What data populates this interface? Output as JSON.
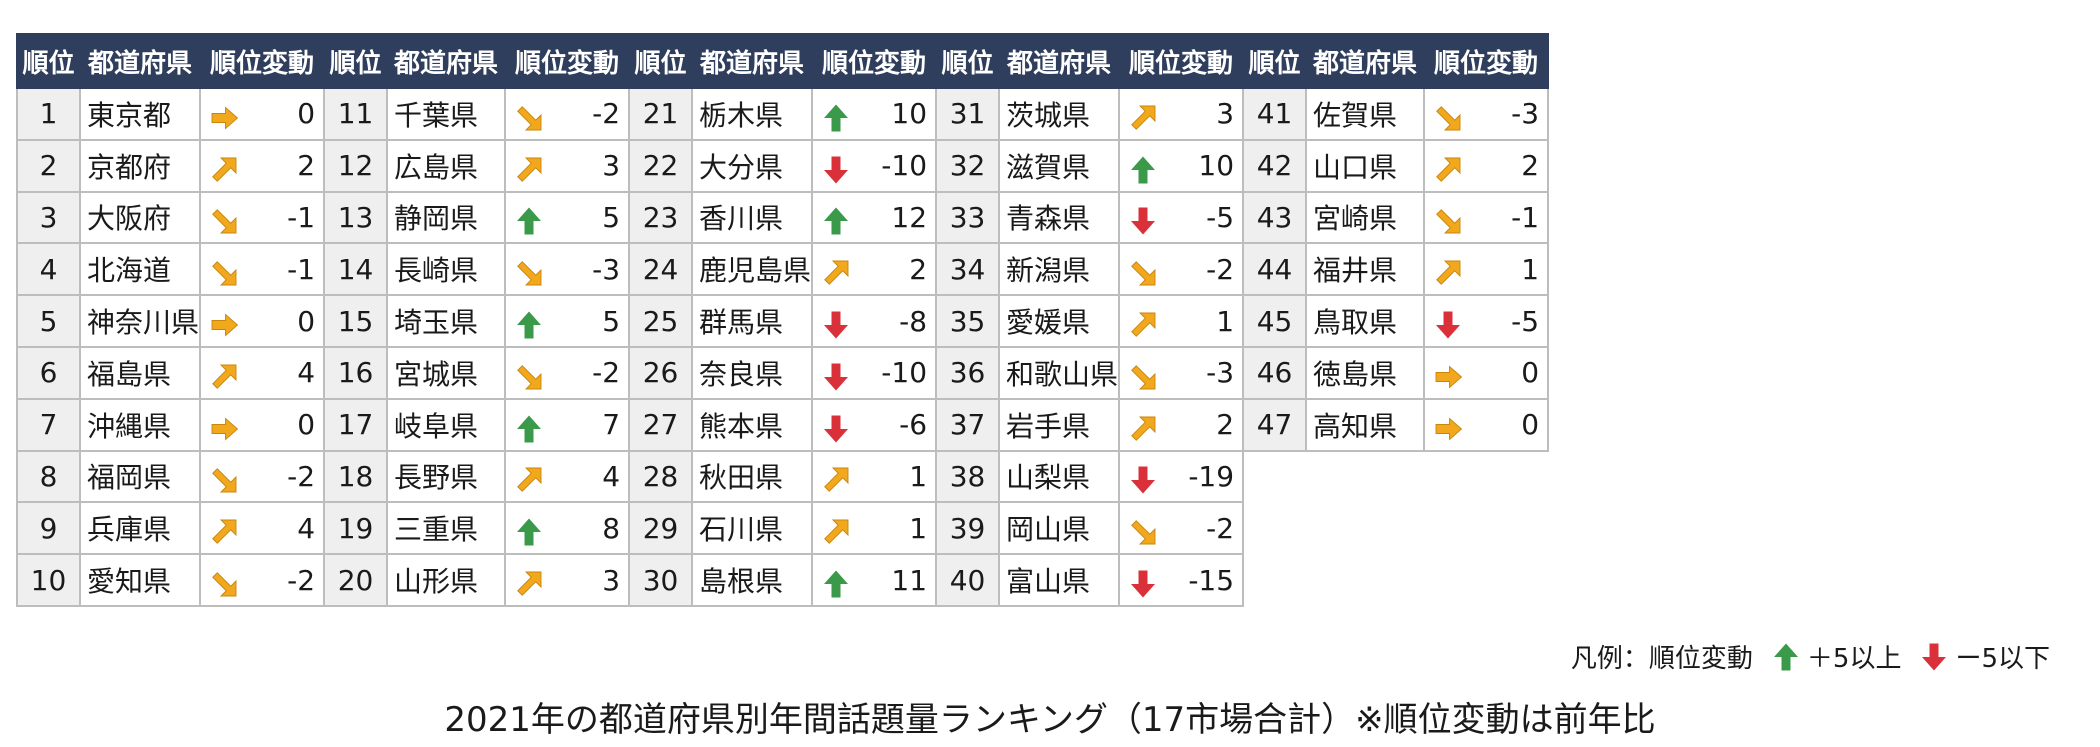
{
  "table": {
    "headers": {
      "rank": "順位",
      "prefecture": "都道府県",
      "change": "順位変動"
    },
    "colors": {
      "header_bg": "#2f3e5c",
      "up": "#3a9a4a",
      "down": "#d9303a",
      "flat": "#f2a81d"
    },
    "entries": [
      {
        "rank": "1",
        "prefecture": "東京都",
        "change": "0",
        "icon": "right-arrow-icon"
      },
      {
        "rank": "2",
        "prefecture": "京都府",
        "change": "2",
        "icon": "up-right-arrow-icon"
      },
      {
        "rank": "3",
        "prefecture": "大阪府",
        "change": "-1",
        "icon": "down-right-arrow-icon"
      },
      {
        "rank": "4",
        "prefecture": "北海道",
        "change": "-1",
        "icon": "down-right-arrow-icon"
      },
      {
        "rank": "5",
        "prefecture": "神奈川県",
        "change": "0",
        "icon": "right-arrow-icon"
      },
      {
        "rank": "6",
        "prefecture": "福島県",
        "change": "4",
        "icon": "up-right-arrow-icon"
      },
      {
        "rank": "7",
        "prefecture": "沖縄県",
        "change": "0",
        "icon": "right-arrow-icon"
      },
      {
        "rank": "8",
        "prefecture": "福岡県",
        "change": "-2",
        "icon": "down-right-arrow-icon"
      },
      {
        "rank": "9",
        "prefecture": "兵庫県",
        "change": "4",
        "icon": "up-right-arrow-icon"
      },
      {
        "rank": "10",
        "prefecture": "愛知県",
        "change": "-2",
        "icon": "down-right-arrow-icon"
      },
      {
        "rank": "11",
        "prefecture": "千葉県",
        "change": "-2",
        "icon": "down-right-arrow-icon"
      },
      {
        "rank": "12",
        "prefecture": "広島県",
        "change": "3",
        "icon": "up-right-arrow-icon"
      },
      {
        "rank": "13",
        "prefecture": "静岡県",
        "change": "5",
        "icon": "up-arrow-icon"
      },
      {
        "rank": "14",
        "prefecture": "長崎県",
        "change": "-3",
        "icon": "down-right-arrow-icon"
      },
      {
        "rank": "15",
        "prefecture": "埼玉県",
        "change": "5",
        "icon": "up-arrow-icon"
      },
      {
        "rank": "16",
        "prefecture": "宮城県",
        "change": "-2",
        "icon": "down-right-arrow-icon"
      },
      {
        "rank": "17",
        "prefecture": "岐阜県",
        "change": "7",
        "icon": "up-arrow-icon"
      },
      {
        "rank": "18",
        "prefecture": "長野県",
        "change": "4",
        "icon": "up-right-arrow-icon"
      },
      {
        "rank": "19",
        "prefecture": "三重県",
        "change": "8",
        "icon": "up-arrow-icon"
      },
      {
        "rank": "20",
        "prefecture": "山形県",
        "change": "3",
        "icon": "up-right-arrow-icon"
      },
      {
        "rank": "21",
        "prefecture": "栃木県",
        "change": "10",
        "icon": "up-arrow-icon"
      },
      {
        "rank": "22",
        "prefecture": "大分県",
        "change": "-10",
        "icon": "down-arrow-icon"
      },
      {
        "rank": "23",
        "prefecture": "香川県",
        "change": "12",
        "icon": "up-arrow-icon"
      },
      {
        "rank": "24",
        "prefecture": "鹿児島県",
        "change": "2",
        "icon": "up-right-arrow-icon"
      },
      {
        "rank": "25",
        "prefecture": "群馬県",
        "change": "-8",
        "icon": "down-arrow-icon"
      },
      {
        "rank": "26",
        "prefecture": "奈良県",
        "change": "-10",
        "icon": "down-arrow-icon"
      },
      {
        "rank": "27",
        "prefecture": "熊本県",
        "change": "-6",
        "icon": "down-arrow-icon"
      },
      {
        "rank": "28",
        "prefecture": "秋田県",
        "change": "1",
        "icon": "up-right-arrow-icon"
      },
      {
        "rank": "29",
        "prefecture": "石川県",
        "change": "1",
        "icon": "up-right-arrow-icon"
      },
      {
        "rank": "30",
        "prefecture": "島根県",
        "change": "11",
        "icon": "up-arrow-icon"
      },
      {
        "rank": "31",
        "prefecture": "茨城県",
        "change": "3",
        "icon": "up-right-arrow-icon"
      },
      {
        "rank": "32",
        "prefecture": "滋賀県",
        "change": "10",
        "icon": "up-arrow-icon"
      },
      {
        "rank": "33",
        "prefecture": "青森県",
        "change": "-5",
        "icon": "down-arrow-icon"
      },
      {
        "rank": "34",
        "prefecture": "新潟県",
        "change": "-2",
        "icon": "down-right-arrow-icon"
      },
      {
        "rank": "35",
        "prefecture": "愛媛県",
        "change": "1",
        "icon": "up-right-arrow-icon"
      },
      {
        "rank": "36",
        "prefecture": "和歌山県",
        "change": "-3",
        "icon": "down-right-arrow-icon"
      },
      {
        "rank": "37",
        "prefecture": "岩手県",
        "change": "2",
        "icon": "up-right-arrow-icon"
      },
      {
        "rank": "38",
        "prefecture": "山梨県",
        "change": "-19",
        "icon": "down-arrow-icon"
      },
      {
        "rank": "39",
        "prefecture": "岡山県",
        "change": "-2",
        "icon": "down-right-arrow-icon"
      },
      {
        "rank": "40",
        "prefecture": "富山県",
        "change": "-15",
        "icon": "down-arrow-icon"
      },
      {
        "rank": "41",
        "prefecture": "佐賀県",
        "change": "-3",
        "icon": "down-right-arrow-icon"
      },
      {
        "rank": "42",
        "prefecture": "山口県",
        "change": "2",
        "icon": "up-right-arrow-icon"
      },
      {
        "rank": "43",
        "prefecture": "宮崎県",
        "change": "-1",
        "icon": "down-right-arrow-icon"
      },
      {
        "rank": "44",
        "prefecture": "福井県",
        "change": "1",
        "icon": "up-right-arrow-icon"
      },
      {
        "rank": "45",
        "prefecture": "鳥取県",
        "change": "-5",
        "icon": "down-arrow-icon"
      },
      {
        "rank": "46",
        "prefecture": "徳島県",
        "change": "0",
        "icon": "right-arrow-icon"
      },
      {
        "rank": "47",
        "prefecture": "高知県",
        "change": "0",
        "icon": "right-arrow-icon"
      }
    ]
  },
  "legend": {
    "label": "凡例：順位変動",
    "up_text": "＋5以上",
    "up_icon": "up-arrow-icon",
    "down_text": "ー5以下",
    "down_icon": "down-arrow-icon"
  },
  "caption": "2021年の都道府県別年間話題量ランキング（17市場合計）※順位変動は前年比"
}
